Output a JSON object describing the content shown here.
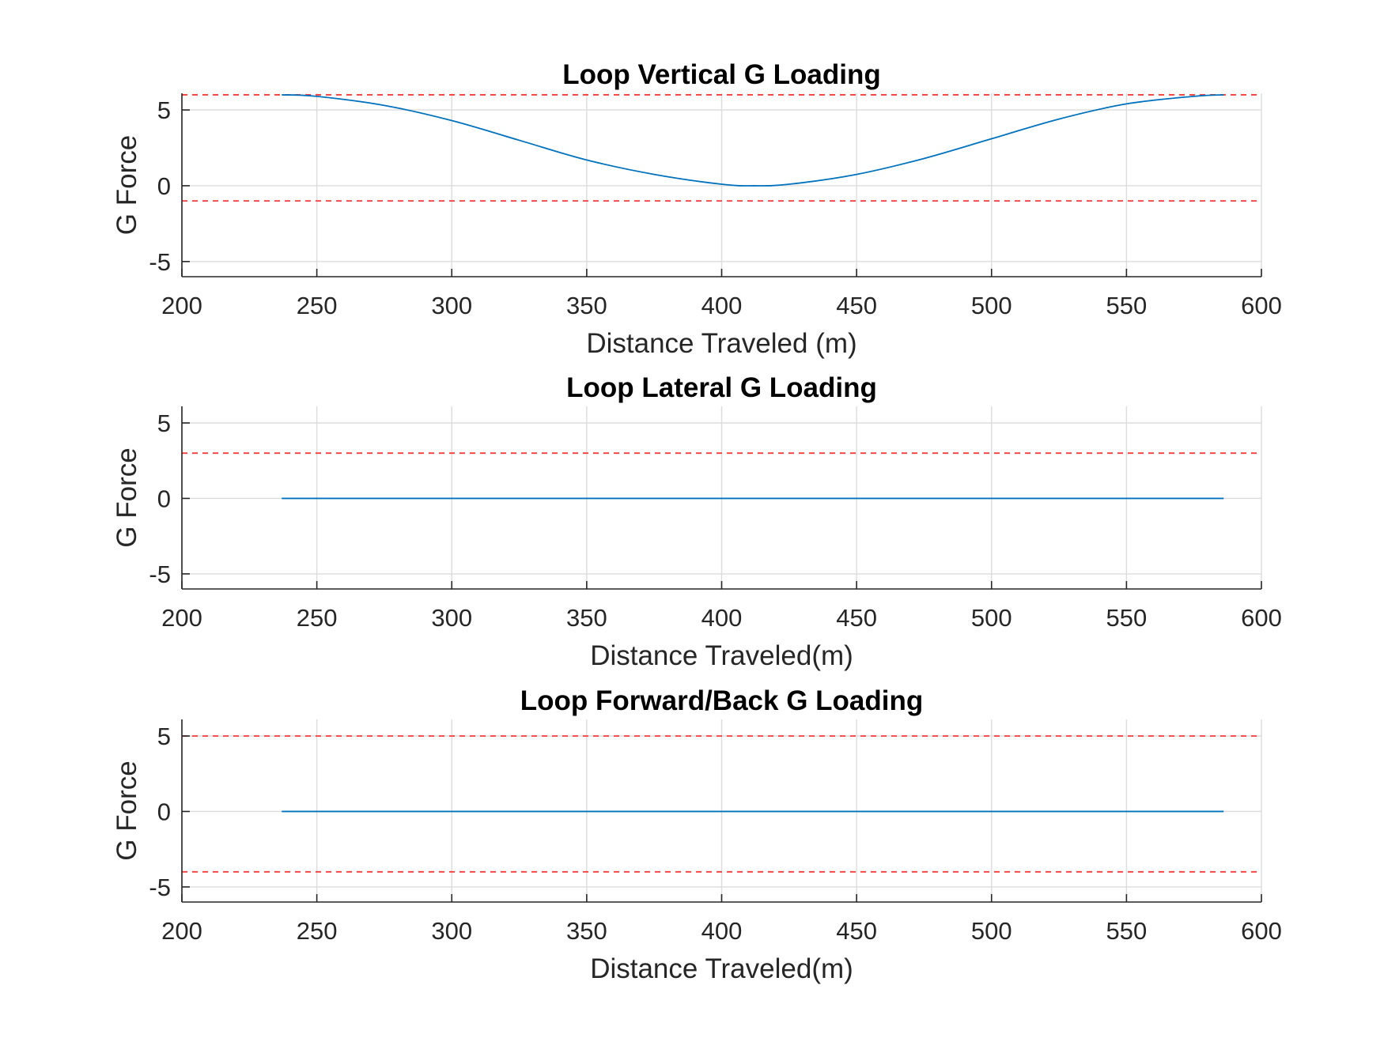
{
  "figure": {
    "colors": {
      "data": "#0072bd",
      "limit": "#ff3b3b",
      "grid": "#dcdcdc",
      "axis": "#262626"
    }
  },
  "chart_data": [
    {
      "type": "line",
      "title": "Loop Vertical G Loading",
      "xlabel": "Distance Traveled (m)",
      "ylabel": "G Force",
      "xlim": [
        200,
        600
      ],
      "ylim": [
        -6,
        6.1
      ],
      "xticks": [
        200,
        250,
        300,
        350,
        400,
        450,
        500,
        550,
        600
      ],
      "yticks": [
        -5,
        0,
        5
      ],
      "grid": true,
      "series": [
        {
          "x": [
            237,
            250,
            275,
            300,
            325,
            350,
            375,
            400,
            412,
            425,
            450,
            475,
            500,
            525,
            550,
            575,
            586
          ],
          "y": [
            6.0,
            5.9,
            5.3,
            4.3,
            3.0,
            1.7,
            0.75,
            0.1,
            0.0,
            0.1,
            0.75,
            1.8,
            3.1,
            4.4,
            5.4,
            5.9,
            6.0
          ]
        }
      ],
      "limits": [
        6,
        -1
      ]
    },
    {
      "type": "line",
      "title": "Loop Lateral G Loading",
      "xlabel": "Distance Traveled(m)",
      "ylabel": "G Force",
      "xlim": [
        200,
        600
      ],
      "ylim": [
        -6,
        6.1
      ],
      "xticks": [
        200,
        250,
        300,
        350,
        400,
        450,
        500,
        550,
        600
      ],
      "yticks": [
        -5,
        0,
        5
      ],
      "grid": true,
      "series": [
        {
          "x": [
            237,
            586
          ],
          "y": [
            0,
            0
          ]
        }
      ],
      "limits": [
        3
      ]
    },
    {
      "type": "line",
      "title": "Loop Forward/Back G Loading",
      "xlabel": "Distance Traveled(m)",
      "ylabel": "G Force",
      "xlim": [
        200,
        600
      ],
      "ylim": [
        -6,
        6.1
      ],
      "xticks": [
        200,
        250,
        300,
        350,
        400,
        450,
        500,
        550,
        600
      ],
      "yticks": [
        -5,
        0,
        5
      ],
      "grid": true,
      "series": [
        {
          "x": [
            237,
            586
          ],
          "y": [
            0,
            0
          ]
        }
      ],
      "limits": [
        5,
        -4
      ]
    }
  ]
}
